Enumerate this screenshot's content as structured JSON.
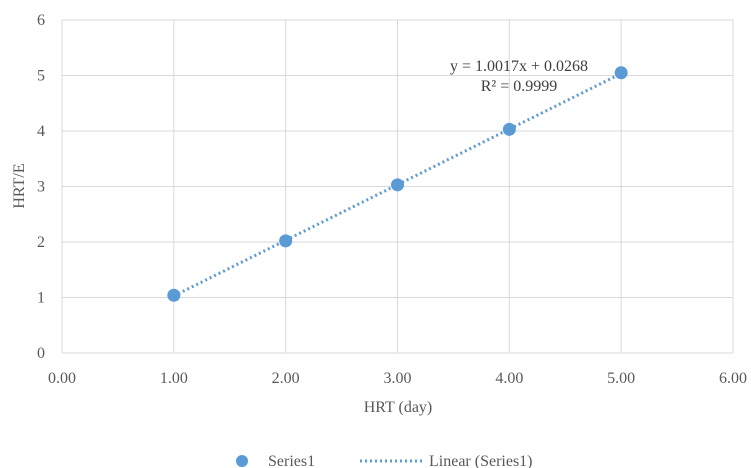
{
  "chart_data": {
    "type": "scatter",
    "title": "",
    "xlabel": "HRT (day)",
    "ylabel": "HRT/E",
    "xlim": [
      0,
      6
    ],
    "ylim": [
      0,
      6
    ],
    "x_ticks": [
      "0.00",
      "1.00",
      "2.00",
      "3.00",
      "4.00",
      "5.00",
      "6.00"
    ],
    "y_ticks": [
      "0",
      "1",
      "2",
      "3",
      "4",
      "5",
      "6"
    ],
    "grid": true,
    "series": [
      {
        "name": "Series1",
        "color": "#5b9bd5",
        "x": [
          1,
          2,
          3,
          4,
          5
        ],
        "y": [
          1.04,
          2.02,
          3.03,
          4.03,
          5.05
        ]
      }
    ],
    "trendline": {
      "name": "Linear (Series1)",
      "type": "linear",
      "style": "dotted",
      "color": "#5b9bd5",
      "slope": 1.0017,
      "intercept": 0.0268,
      "x_range": [
        1,
        5
      ],
      "equation": "y = 1.0017x + 0.0268",
      "r_squared": "R² = 0.9999"
    },
    "legend": {
      "position": "bottom",
      "entries": [
        "Series1",
        "Linear (Series1)"
      ]
    }
  }
}
